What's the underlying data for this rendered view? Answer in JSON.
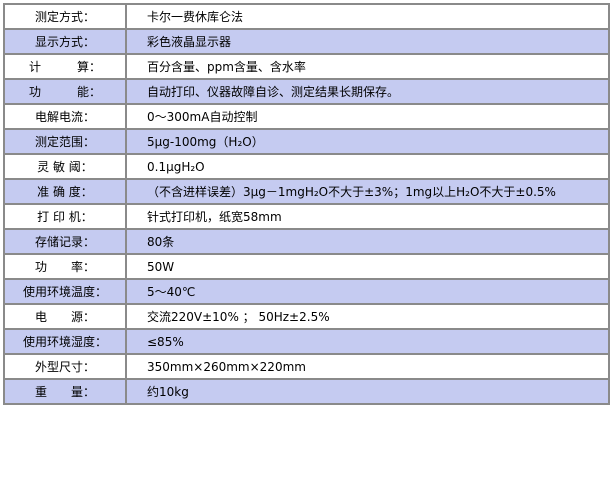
{
  "rows": [
    {
      "label": "测定方式：",
      "value": "卡尔一费休库仑法"
    },
    {
      "label": "显示方式：",
      "value": "彩色液晶显示器"
    },
    {
      "label": "计　　　算：",
      "value": "百分含量、ppm含量、含水率"
    },
    {
      "label": "功　　　能：",
      "value": "自动打印、仪器故障自诊、测定结果长期保存。"
    },
    {
      "label": "电解电流：",
      "value": "0～300mA自动控制"
    },
    {
      "label": "测定范围：",
      "value": "5μg-100mg（H₂O）"
    },
    {
      "label": "灵 敏 阈：",
      "value": "0.1μgH₂O"
    },
    {
      "label": "准 确 度：",
      "value": "（不含进样误差）3μg－1mgH₂O不大于±3%；1mg以上H₂O不大于±0.5%"
    },
    {
      "label": "打 印 机：",
      "value": "针式打印机，纸宽58mm"
    },
    {
      "label": "存储记录：",
      "value": "80条"
    },
    {
      "label": "功　　率：",
      "value": "50W"
    },
    {
      "label": "使用环境温度：",
      "value": "5～40℃"
    },
    {
      "label": "电　　源：",
      "value": "交流220V±10% ； 50Hz±2.5%"
    },
    {
      "label": "使用环境湿度：",
      "value": "≤85%"
    },
    {
      "label": "外型尺寸：",
      "value": "350mm×260mm×220mm"
    },
    {
      "label": "重　　量：",
      "value": "约10kg"
    }
  ],
  "colors": {
    "alt_row": "#c5cbf1",
    "border": "#8a8a8a"
  }
}
